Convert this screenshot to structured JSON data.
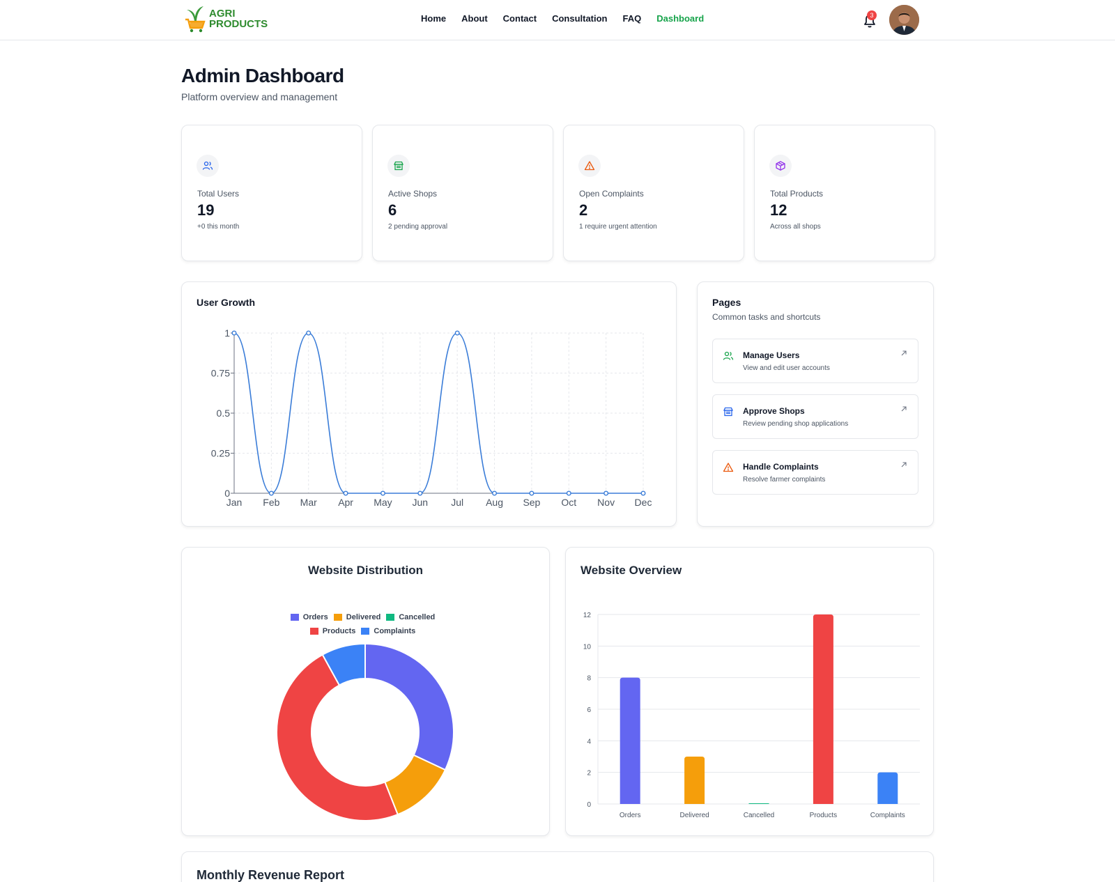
{
  "brand": {
    "line1": "AGRI",
    "line2": "PRODUCTS"
  },
  "nav": {
    "links": [
      {
        "label": "Home",
        "active": false
      },
      {
        "label": "About",
        "active": false
      },
      {
        "label": "Contact",
        "active": false
      },
      {
        "label": "Consultation",
        "active": false
      },
      {
        "label": "FAQ",
        "active": false
      },
      {
        "label": "Dashboard",
        "active": true
      }
    ],
    "notification_count": "3"
  },
  "header": {
    "title": "Admin Dashboard",
    "subtitle": "Platform overview and management"
  },
  "stats": [
    {
      "label": "Total Users",
      "value": "19",
      "note": "+0 this month",
      "icon": "users-icon",
      "color": "#2563eb"
    },
    {
      "label": "Active Shops",
      "value": "6",
      "note": "2 pending approval",
      "icon": "store-icon",
      "color": "#16a34a"
    },
    {
      "label": "Open Complaints",
      "value": "2",
      "note": "1 require urgent attention",
      "icon": "warning-icon",
      "color": "#ea580c"
    },
    {
      "label": "Total Products",
      "value": "12",
      "note": "Across all shops",
      "icon": "package-icon",
      "color": "#9333ea"
    }
  ],
  "user_growth": {
    "title": "User Growth"
  },
  "pages": {
    "title": "Pages",
    "subtitle": "Common tasks and shortcuts",
    "items": [
      {
        "title": "Manage Users",
        "desc": "View and edit user accounts",
        "icon": "users-icon",
        "color": "#16a34a"
      },
      {
        "title": "Approve Shops",
        "desc": "Review pending shop applications",
        "icon": "store-icon",
        "color": "#2563eb"
      },
      {
        "title": "Handle Complaints",
        "desc": "Resolve farmer complaints",
        "icon": "warning-icon",
        "color": "#ea580c"
      }
    ]
  },
  "distribution": {
    "title": "Website Distribution"
  },
  "overview": {
    "title": "Website Overview"
  },
  "revenue": {
    "title": "Monthly Revenue Report"
  },
  "chart_data": [
    {
      "type": "line",
      "title": "User Growth",
      "x": [
        "Jan",
        "Feb",
        "Mar",
        "Apr",
        "May",
        "Jun",
        "Jul",
        "Aug",
        "Sep",
        "Oct",
        "Nov",
        "Dec"
      ],
      "series": [
        {
          "values": [
            1,
            0,
            1,
            0,
            0,
            0,
            1,
            0,
            0,
            0,
            0,
            0
          ],
          "color": "#3b7dd8"
        }
      ],
      "ylim": [
        0,
        1
      ],
      "yticks": [
        "0",
        "0.25",
        "0.5",
        "0.75",
        "1"
      ],
      "grid": true
    },
    {
      "type": "pie",
      "title": "Website Distribution",
      "categories": [
        "Orders",
        "Delivered",
        "Cancelled",
        "Products",
        "Complaints"
      ],
      "values": [
        8,
        3,
        0,
        12,
        2
      ],
      "colors": [
        "#6366f1",
        "#f59e0b",
        "#10b981",
        "#ef4444",
        "#3b82f6"
      ],
      "legend": "top"
    },
    {
      "type": "bar",
      "title": "Website Overview",
      "categories": [
        "Orders",
        "Delivered",
        "Cancelled",
        "Products",
        "Complaints"
      ],
      "values": [
        8,
        3,
        0,
        12,
        2
      ],
      "colors": [
        "#6366f1",
        "#f59e0b",
        "#10b981",
        "#ef4444",
        "#3b82f6"
      ],
      "ylim": [
        0,
        12
      ],
      "yticks": [
        "0",
        "2",
        "4",
        "6",
        "8",
        "10",
        "12"
      ],
      "grid": true
    }
  ]
}
